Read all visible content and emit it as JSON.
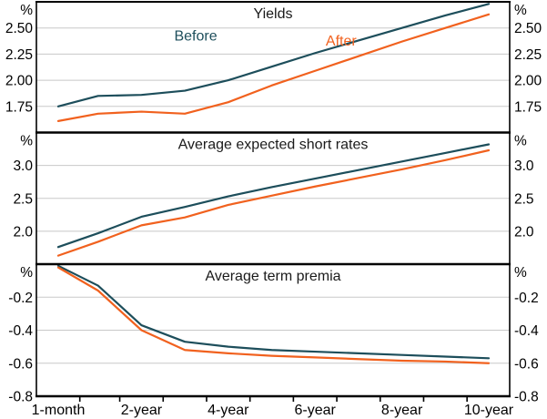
{
  "figure": {
    "series_labels": {
      "before": "Before",
      "after": "After"
    },
    "colors": {
      "before": "#1d4e5b",
      "after": "#f1611e",
      "gridline": "#c8c8c8",
      "axis": "#000000",
      "text": "#000000"
    }
  },
  "x_axis": {
    "categories": [
      "1-month",
      "2-year",
      "4-year",
      "6-year",
      "8-year",
      "10-year"
    ],
    "label_years": [
      0.0833,
      2,
      4,
      6,
      8,
      10
    ],
    "tick_years": [
      0.58,
      1.5,
      2.5,
      3.5,
      4.5,
      5.5,
      6.5,
      7.5,
      8.5,
      9.5
    ]
  },
  "chart_data": [
    {
      "type": "line",
      "title": "Yields",
      "unit": "%",
      "ylim": [
        1.5,
        2.75
      ],
      "grid_values": [
        1.75,
        2.0,
        2.25,
        2.5
      ],
      "ylabels": [
        {
          "text": "2.50",
          "value": 2.5
        },
        {
          "text": "2.25",
          "value": 2.25
        },
        {
          "text": "2.00",
          "value": 2.0
        },
        {
          "text": "1.75",
          "value": 1.75
        }
      ],
      "x_years": [
        0.0833,
        1,
        2,
        3,
        4,
        5,
        6,
        7,
        8,
        9,
        10
      ],
      "series": [
        {
          "name": "Before",
          "key": "before",
          "values": [
            1.75,
            1.85,
            1.86,
            1.9,
            2.0,
            2.13,
            2.26,
            2.38,
            2.5,
            2.62,
            2.73
          ]
        },
        {
          "name": "After",
          "key": "after",
          "values": [
            1.61,
            1.68,
            1.7,
            1.68,
            1.79,
            1.95,
            2.09,
            2.23,
            2.37,
            2.5,
            2.63
          ]
        }
      ],
      "annotations": [
        {
          "text": "Before",
          "key": "before",
          "x_year": 3.25,
          "value": 2.38
        },
        {
          "text": "After",
          "key": "after",
          "x_year": 6.6,
          "value": 2.33
        }
      ]
    },
    {
      "type": "line",
      "title": "Average expected short rates",
      "unit": "%",
      "ylim": [
        1.5,
        3.5
      ],
      "grid_values": [
        2.0,
        2.5,
        3.0
      ],
      "ylabels": [
        {
          "text": "3.0",
          "value": 3.0
        },
        {
          "text": "2.5",
          "value": 2.5
        },
        {
          "text": "2.0",
          "value": 2.0
        }
      ],
      "x_years": [
        0.0833,
        1,
        2,
        3,
        4,
        5,
        6,
        7,
        8,
        9,
        10
      ],
      "series": [
        {
          "name": "Before",
          "key": "before",
          "values": [
            1.76,
            1.97,
            2.22,
            2.37,
            2.53,
            2.67,
            2.8,
            2.93,
            3.06,
            3.19,
            3.32
          ]
        },
        {
          "name": "After",
          "key": "after",
          "values": [
            1.63,
            1.84,
            2.09,
            2.21,
            2.4,
            2.54,
            2.68,
            2.81,
            2.94,
            3.08,
            3.23
          ]
        }
      ],
      "annotations": []
    },
    {
      "type": "line",
      "title": "Average term premia",
      "unit": "%",
      "ylim": [
        -0.8,
        0.0
      ],
      "grid_values": [
        -0.6,
        -0.4,
        -0.2
      ],
      "ylabels": [
        {
          "text": "-0.2",
          "value": -0.2
        },
        {
          "text": "-0.4",
          "value": -0.4
        },
        {
          "text": "-0.6",
          "value": -0.6
        },
        {
          "text": "-0.8",
          "value": -0.8
        }
      ],
      "x_years": [
        0.0833,
        1,
        2,
        3,
        4,
        5,
        6,
        7,
        8,
        9,
        10
      ],
      "series": [
        {
          "name": "Before",
          "key": "before",
          "values": [
            -0.01,
            -0.13,
            -0.37,
            -0.47,
            -0.5,
            -0.52,
            -0.53,
            -0.54,
            -0.55,
            -0.56,
            -0.57
          ]
        },
        {
          "name": "After",
          "key": "after",
          "values": [
            -0.02,
            -0.16,
            -0.4,
            -0.52,
            -0.54,
            -0.555,
            -0.565,
            -0.575,
            -0.585,
            -0.59,
            -0.6
          ]
        }
      ],
      "annotations": []
    }
  ]
}
